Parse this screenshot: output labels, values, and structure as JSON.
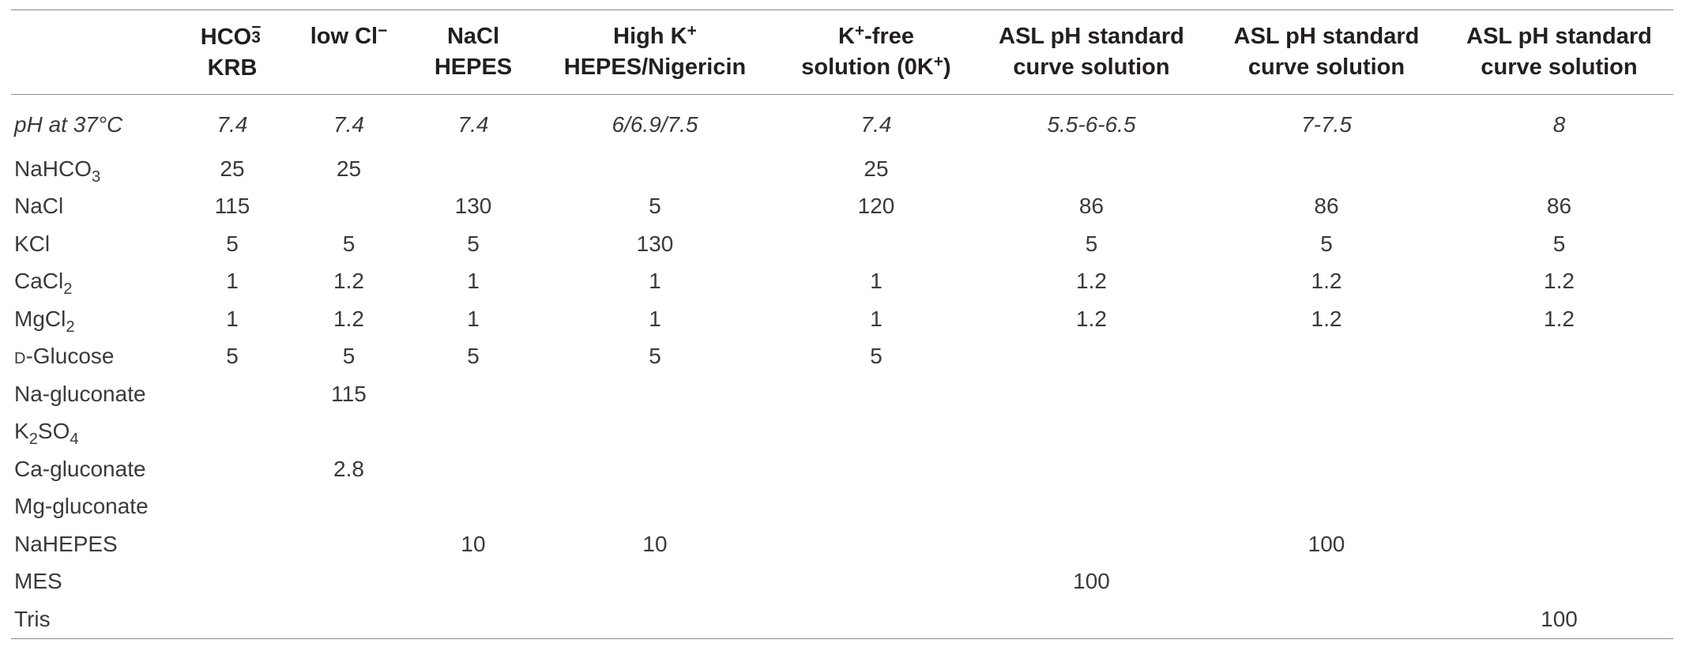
{
  "table": {
    "headers": [
      {
        "line1_base": "HCO",
        "line1_sub": "3",
        "line1_sup": "−",
        "line2": "KRB"
      },
      {
        "line1": "low Cl",
        "line1_sup": "−",
        "line2": ""
      },
      {
        "line1": "NaCl",
        "line2": "HEPES"
      },
      {
        "line1": "High K",
        "line1_sup": "+",
        "line2": "HEPES/Nigericin"
      },
      {
        "line1_pre": "K",
        "line1_sup": "+",
        "line1_post": "-free",
        "line2_pre": "solution (0K",
        "line2_sup": "+",
        "line2_post": ")"
      },
      {
        "line1": "ASL pH standard",
        "line2": "curve solution"
      },
      {
        "line1": "ASL pH standard",
        "line2": "curve solution"
      },
      {
        "line1": "ASL pH standard",
        "line2": "curve solution"
      }
    ],
    "rows": [
      {
        "label": "pH at 37°C",
        "values": [
          "7.4",
          "7.4",
          "7.4",
          "6/6.9/7.5",
          "7.4",
          "5.5-6-6.5",
          "7-7.5",
          "8"
        ]
      },
      {
        "label": "NaHCO",
        "label_sub": "3",
        "values": [
          "25",
          "25",
          "",
          "",
          "25",
          "",
          "",
          ""
        ]
      },
      {
        "label": "NaCl",
        "values": [
          "115",
          "",
          "130",
          "5",
          "120",
          "86",
          "86",
          "86"
        ]
      },
      {
        "label": "KCl",
        "values": [
          "5",
          "5",
          "5",
          "130",
          "",
          "5",
          "5",
          "5"
        ]
      },
      {
        "label": "CaCl",
        "label_sub": "2",
        "values": [
          "1",
          "1.2",
          "1",
          "1",
          "1",
          "1.2",
          "1.2",
          "1.2"
        ]
      },
      {
        "label": "MgCl",
        "label_sub": "2",
        "values": [
          "1",
          "1.2",
          "1",
          "1",
          "1",
          "1.2",
          "1.2",
          "1.2"
        ]
      },
      {
        "label_sc": "d",
        "label": "-Glucose",
        "values": [
          "5",
          "5",
          "5",
          "5",
          "5",
          "",
          "",
          ""
        ]
      },
      {
        "label": "Na-gluconate",
        "values": [
          "",
          "115",
          "",
          "",
          "",
          "",
          "",
          ""
        ]
      },
      {
        "label_pre": "K",
        "label_sub": "2",
        "label": "SO",
        "label_sub2": "4",
        "values": [
          "",
          "",
          "",
          "",
          "",
          "",
          "",
          ""
        ]
      },
      {
        "label": "Ca-gluconate",
        "values": [
          "",
          "2.8",
          "",
          "",
          "",
          "",
          "",
          ""
        ]
      },
      {
        "label": "Mg-gluconate",
        "values": [
          "",
          "",
          "",
          "",
          "",
          "",
          "",
          ""
        ]
      },
      {
        "label": "NaHEPES",
        "values": [
          "",
          "",
          "10",
          "10",
          "",
          "",
          "100",
          ""
        ]
      },
      {
        "label": "MES",
        "values": [
          "",
          "",
          "",
          "",
          "",
          "100",
          "",
          ""
        ]
      },
      {
        "label": "Tris",
        "values": [
          "",
          "",
          "",
          "",
          "",
          "",
          "",
          "100"
        ]
      }
    ]
  }
}
